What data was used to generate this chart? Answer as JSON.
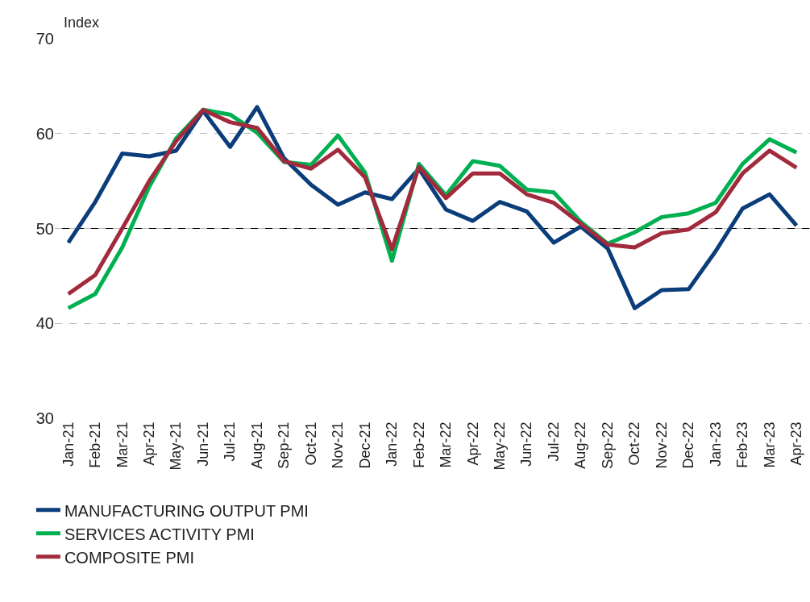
{
  "chart_data": {
    "type": "line",
    "ylabel": "Index",
    "categories": [
      "Jan-21",
      "Feb-21",
      "Mar-21",
      "Apr-21",
      "May-21",
      "Jun-21",
      "Jul-21",
      "Aug-21",
      "Sep-21",
      "Oct-21",
      "Nov-21",
      "Dec-21",
      "Jan-22",
      "Feb-22",
      "Mar-22",
      "Apr-22",
      "May-22",
      "Jun-22",
      "Jul-22",
      "Aug-22",
      "Sep-22",
      "Oct-22",
      "Nov-22",
      "Dec-22",
      "Jan-23",
      "Feb-23",
      "Mar-23",
      "Apr-23"
    ],
    "series": [
      {
        "name": "MANUFACTURING OUTPUT PMI",
        "color": "#0a3d7a",
        "values": [
          48.5,
          52.8,
          57.9,
          57.6,
          58.2,
          62.4,
          58.6,
          62.8,
          57.4,
          54.6,
          52.5,
          53.8,
          53.1,
          56.3,
          52.0,
          50.8,
          52.8,
          51.8,
          48.5,
          50.2,
          47.9,
          41.6,
          43.5,
          43.6,
          47.6,
          52.1,
          53.6,
          50.3
        ]
      },
      {
        "name": "SERVICES ACTIVITY PMI",
        "color": "#00b050",
        "values": [
          41.6,
          43.1,
          48.0,
          54.4,
          59.5,
          62.5,
          62.0,
          60.1,
          57.0,
          56.7,
          59.8,
          55.9,
          46.6,
          56.8,
          53.5,
          57.1,
          56.6,
          54.1,
          53.8,
          50.7,
          48.4,
          49.6,
          51.2,
          51.6,
          52.7,
          56.8,
          59.4,
          58.0
        ]
      },
      {
        "name": "COMPOSITE PMI",
        "color": "#a12a3c",
        "values": [
          43.1,
          45.1,
          50.0,
          55.0,
          59.2,
          62.5,
          61.2,
          60.6,
          57.1,
          56.3,
          58.3,
          55.4,
          47.8,
          56.5,
          53.2,
          55.8,
          55.8,
          53.6,
          52.7,
          50.5,
          48.3,
          48.0,
          49.5,
          49.9,
          51.7,
          55.8,
          58.2,
          56.4
        ]
      }
    ],
    "ylim": [
      30,
      70
    ],
    "yticks": [
      30,
      40,
      50,
      60,
      70
    ],
    "grid": "y",
    "ref_lines": [
      {
        "axis": "y",
        "value": 50,
        "color": "#000000"
      }
    ],
    "legend": "bottom",
    "marker": "none",
    "line_style": "solid"
  }
}
